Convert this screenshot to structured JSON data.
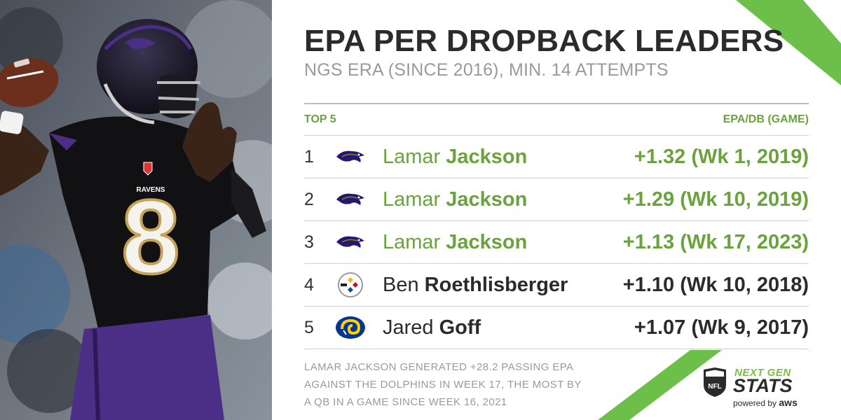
{
  "header": {
    "title": "EPA PER DROPBACK LEADERS",
    "subtitle": "NGS ERA (SINCE 2016), MIN. 14 ATTEMPTS"
  },
  "table": {
    "left_header": "TOP 5",
    "right_header": "EPA/DB (GAME)",
    "rows": [
      {
        "rank": "1",
        "first": "Lamar",
        "last": "Jackson",
        "value": "+1.32 (Wk 1, 2019)",
        "team_icon": "ravens-logo-icon"
      },
      {
        "rank": "2",
        "first": "Lamar",
        "last": "Jackson",
        "value": "+1.29 (Wk 10, 2019)",
        "team_icon": "ravens-logo-icon"
      },
      {
        "rank": "3",
        "first": "Lamar",
        "last": "Jackson",
        "value": "+1.13 (Wk 17, 2023)",
        "team_icon": "ravens-logo-icon"
      },
      {
        "rank": "4",
        "first": "Ben",
        "last": "Roethlisberger",
        "value": "+1.10 (Wk 10, 2018)",
        "team_icon": "steelers-logo-icon"
      },
      {
        "rank": "5",
        "first": "Jared",
        "last": "Goff",
        "value": "+1.07 (Wk 9, 2017)",
        "team_icon": "rams-logo-icon"
      }
    ]
  },
  "footnote": {
    "line1": "LAMAR JACKSON GENERATED +28.2 PASSING EPA",
    "line2": "AGAINST THE DOLPHINS IN WEEK 17, THE MOST BY",
    "line3": "A QB IN A GAME SINCE WEEK 16, 2021"
  },
  "brand": {
    "next_gen": "NEXT GEN",
    "stats": "STATS",
    "powered_by": "powered by",
    "aws": "aws",
    "nfl": "NFL"
  },
  "photo": {
    "jersey_number": "8",
    "jersey_wordmark": "RAVENS"
  },
  "colors": {
    "highlight_green": "#6aa33d",
    "accent_green": "#6cc04a",
    "ravens_purple": "#3b2a78",
    "text_dark": "#2b2b2b",
    "muted_gray": "#9a9a9a"
  }
}
